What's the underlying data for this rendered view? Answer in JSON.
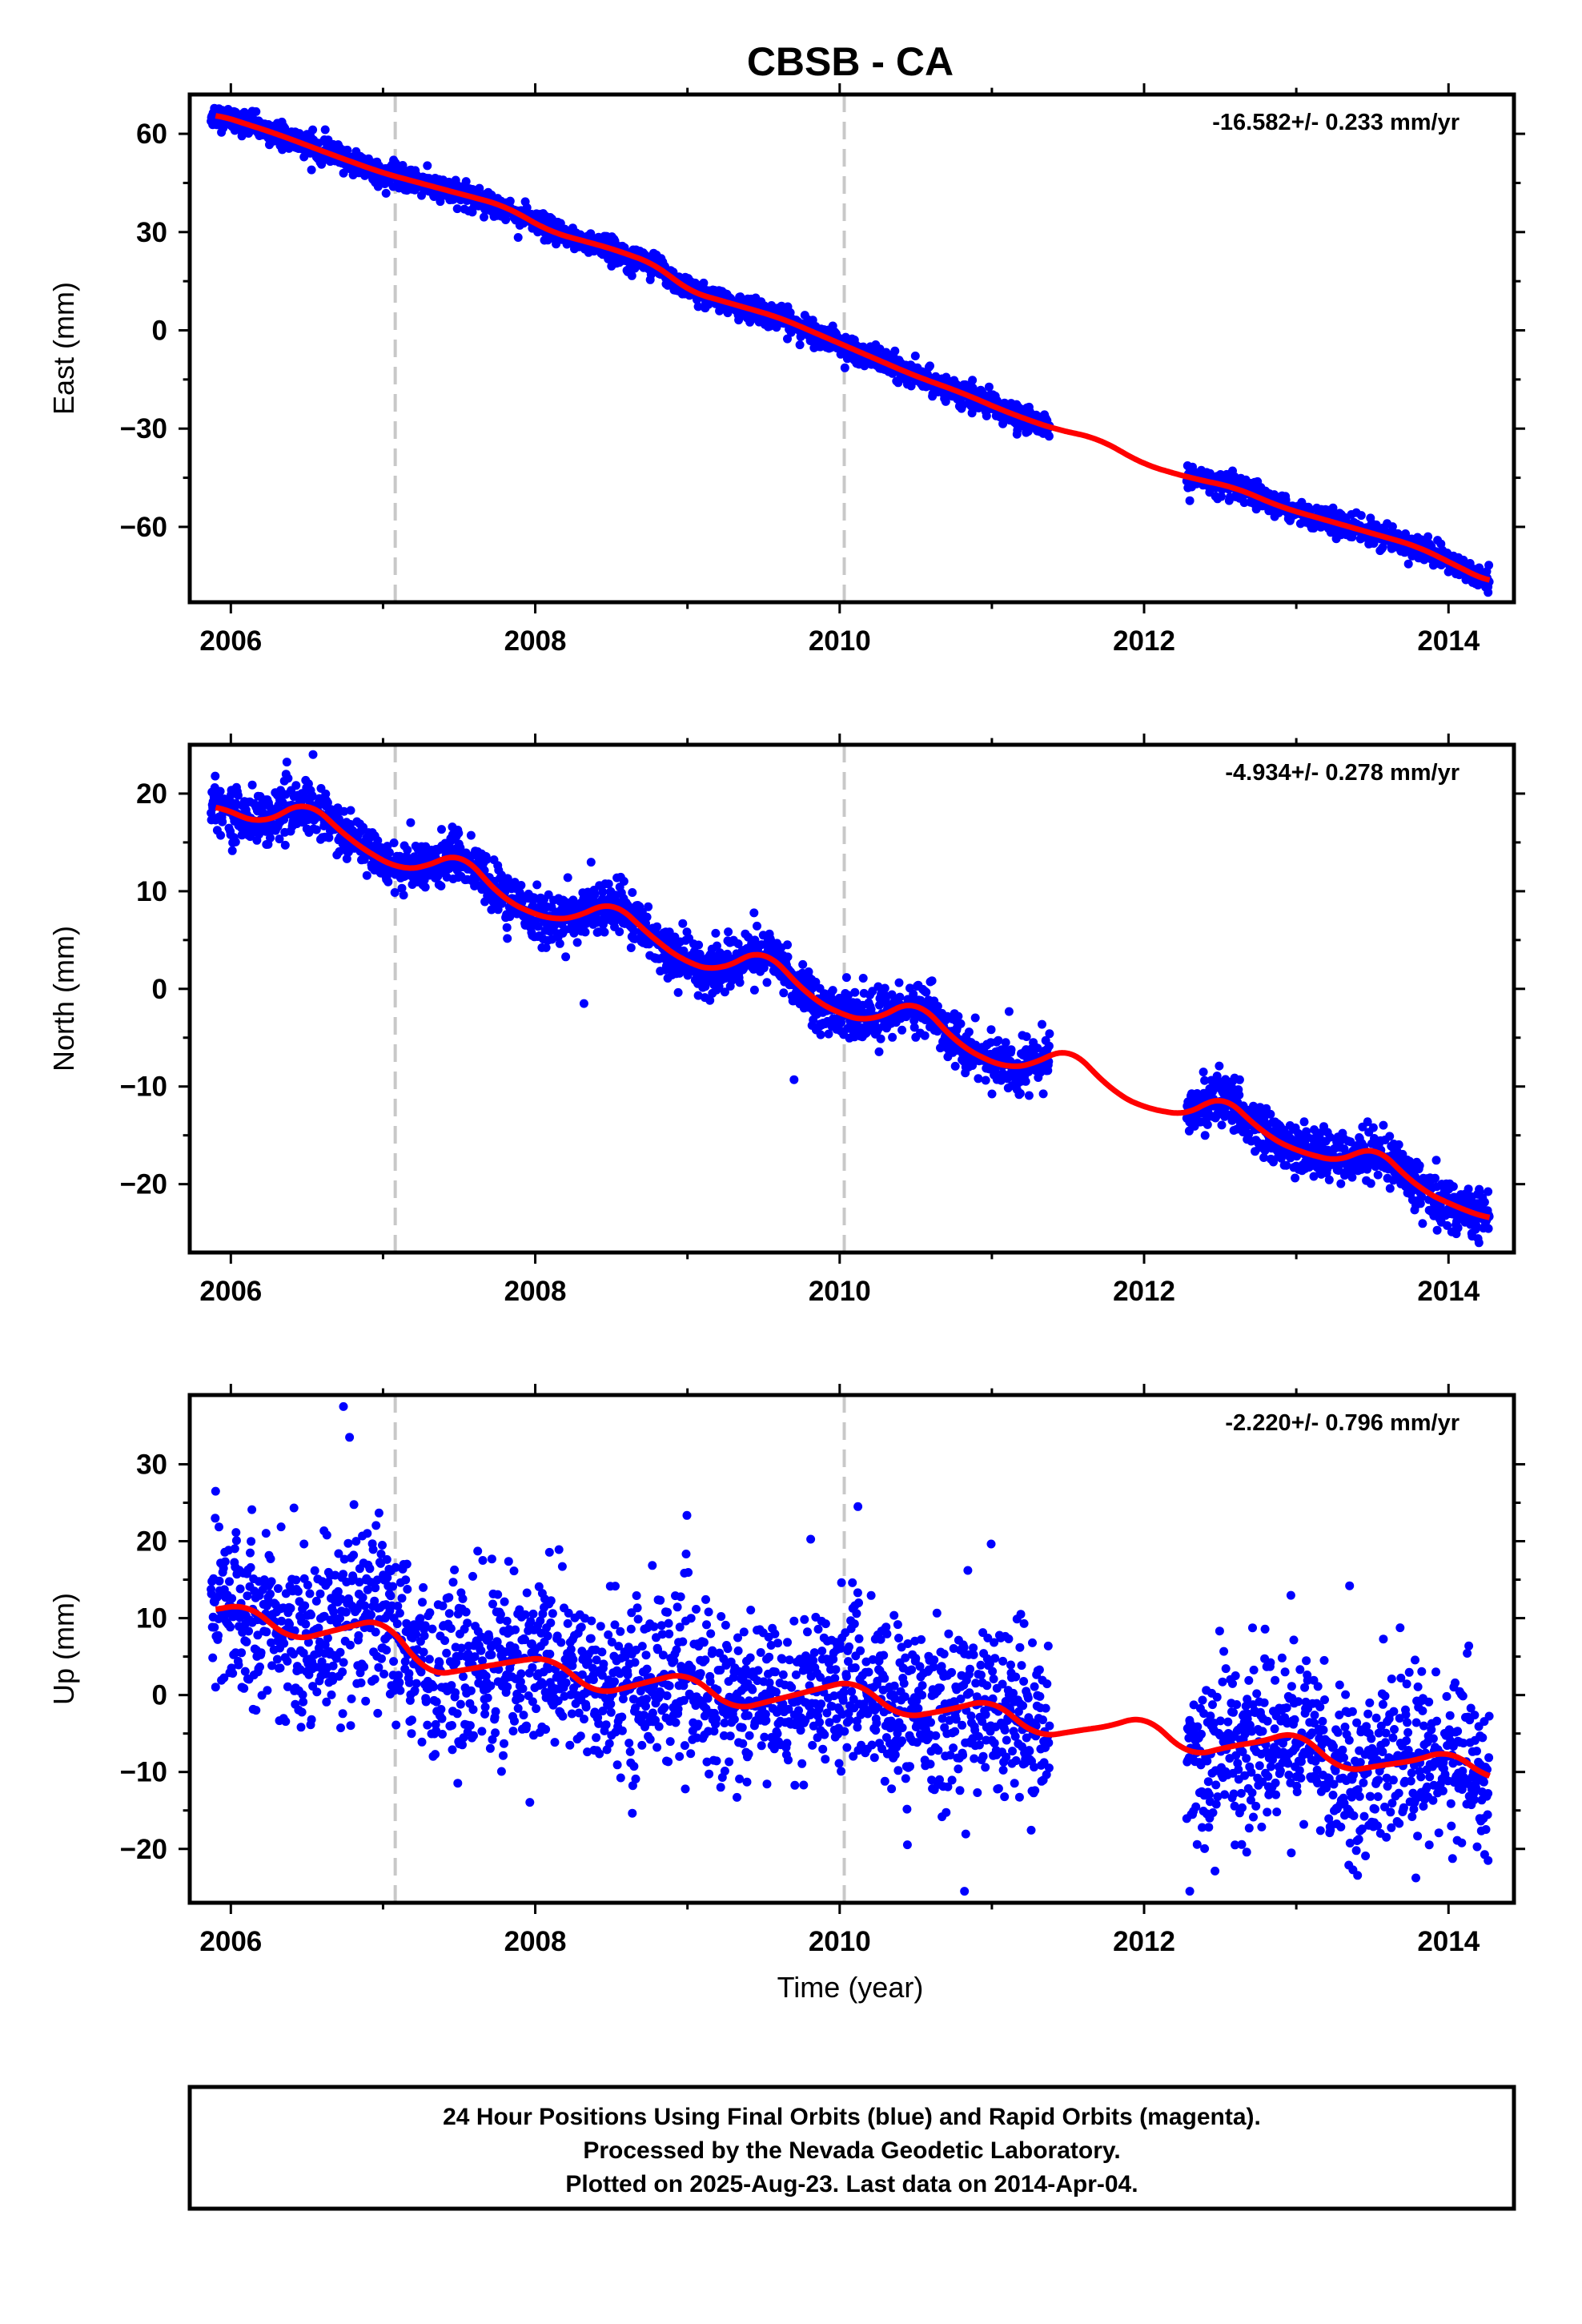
{
  "title": "CBSB - CA",
  "colors": {
    "final_orbits": "#0000ff",
    "fit_line": "#ff0000",
    "event_line": "#c8c8c8",
    "frame": "#000000"
  },
  "xlabel": "Time (year)",
  "x_ticks": [
    2006,
    2008,
    2010,
    2012,
    2014
  ],
  "xlim": [
    2005.73,
    2014.43
  ],
  "event_lines": [
    2007.08,
    2010.03
  ],
  "chart_data": [
    {
      "type": "scatter",
      "component": "East",
      "ylabel": "East (mm)",
      "rate": "-16.582+/- 0.233 mm/yr",
      "ylim": [
        -83,
        72
      ],
      "y_ticks": [
        60,
        30,
        0,
        -30,
        -60
      ],
      "y_tick_labels": [
        "60",
        "30",
        "0",
        "−30",
        "−60"
      ],
      "legend": "top-right",
      "grid": false,
      "trend": {
        "t": [
          2005.9,
          2006.3,
          2006.7,
          2007.0,
          2007.4,
          2007.8,
          2008.1,
          2008.5,
          2008.8,
          2009.0,
          2009.3,
          2009.6,
          2009.9,
          2010.2,
          2010.5,
          2010.8,
          2011.1,
          2011.4,
          2011.7,
          2012.0,
          2012.3,
          2012.6,
          2012.9,
          2013.2,
          2013.5,
          2013.8,
          2014.1,
          2014.27
        ],
        "y": [
          66,
          60,
          53,
          48,
          43,
          38,
          30,
          25,
          20,
          12,
          8,
          4,
          -2,
          -8,
          -14,
          -19,
          -25,
          -30,
          -33,
          -41,
          -45,
          -48,
          -54,
          -58,
          -62,
          -66,
          -73,
          -77
        ]
      },
      "observed_spans": [
        [
          2005.87,
          2011.38
        ],
        [
          2012.28,
          2014.27
        ]
      ],
      "scatter_sigma": 1.8,
      "outliers": [
        {
          "t": 2006.53,
          "y": 49
        },
        {
          "t": 2012.3,
          "y": -52
        },
        {
          "t": 2014.26,
          "y": -80
        }
      ],
      "series": [
        {
          "name": "Final Orbits",
          "role": "daily-positions"
        },
        {
          "name": "Fit",
          "role": "model"
        }
      ]
    },
    {
      "type": "scatter",
      "component": "North",
      "ylabel": "North (mm)",
      "rate": "-4.934+/- 0.278 mm/yr",
      "ylim": [
        -27,
        25
      ],
      "y_ticks": [
        20,
        10,
        0,
        -10,
        -20
      ],
      "y_tick_labels": [
        "20",
        "10",
        "0",
        "−10",
        "−20"
      ],
      "legend": "top-right",
      "grid": false,
      "trend": {
        "t": [
          2005.9,
          2006.2,
          2006.5,
          2006.8,
          2007.1,
          2007.3,
          2007.5,
          2007.8,
          2008.1,
          2008.3,
          2008.5,
          2008.8,
          2009.0,
          2009.2,
          2009.5,
          2009.8,
          2010.0,
          2010.2,
          2010.5,
          2010.8,
          2011.1,
          2011.3,
          2011.5,
          2011.8,
          2012.0,
          2012.3,
          2012.5,
          2012.8,
          2013.0,
          2013.3,
          2013.5,
          2013.8,
          2014.0,
          2014.27
        ],
        "y": [
          18.8,
          16.8,
          19.4,
          15.0,
          12.2,
          12.5,
          14.2,
          9.0,
          7.0,
          7.4,
          9.2,
          4.8,
          2.6,
          1.8,
          4.2,
          -0.8,
          -2.6,
          -3.4,
          -1.0,
          -6.0,
          -8.2,
          -7.6,
          -5.8,
          -10.6,
          -12.2,
          -13.0,
          -10.6,
          -15.0,
          -16.6,
          -17.8,
          -15.8,
          -20.4,
          -22.0,
          -23.6
        ]
      },
      "observed_spans": [
        [
          2005.87,
          2011.38
        ],
        [
          2012.28,
          2014.27
        ]
      ],
      "scatter_sigma": 1.3,
      "outliers": [
        {
          "t": 2006.54,
          "y": 24
        },
        {
          "t": 2008.32,
          "y": -1.5
        },
        {
          "t": 2009.7,
          "y": -9.3
        },
        {
          "t": 2014.2,
          "y": -26
        }
      ],
      "series": [
        {
          "name": "Final Orbits",
          "role": "daily-positions"
        },
        {
          "name": "Fit",
          "role": "model"
        }
      ]
    },
    {
      "type": "scatter",
      "component": "Up",
      "ylabel": "Up (mm)",
      "rate": "-2.220+/- 0.796 mm/yr",
      "ylim": [
        -27,
        39
      ],
      "y_ticks": [
        30,
        20,
        10,
        0,
        -10,
        -20
      ],
      "y_tick_labels": [
        "30",
        "20",
        "10",
        "0",
        "−10",
        "−20"
      ],
      "legend": "top-right",
      "grid": false,
      "trend": {
        "t": [
          2005.9,
          2006.1,
          2006.4,
          2006.7,
          2007.0,
          2007.3,
          2007.6,
          2007.9,
          2008.1,
          2008.4,
          2008.7,
          2009.0,
          2009.3,
          2009.6,
          2009.9,
          2010.1,
          2010.4,
          2010.7,
          2011.0,
          2011.3,
          2011.6,
          2011.8,
          2012.0,
          2012.3,
          2012.6,
          2012.8,
          2013.0,
          2013.3,
          2013.6,
          2013.8,
          2014.0,
          2014.27
        ],
        "y": [
          11.0,
          12.0,
          7.0,
          8.5,
          10.0,
          2.5,
          3.5,
          4.5,
          5.0,
          0.0,
          1.5,
          3.0,
          -2.0,
          -0.5,
          1.0,
          2.0,
          -3.0,
          -2.0,
          -0.5,
          -5.5,
          -4.5,
          -4.0,
          -2.5,
          -8.0,
          -6.5,
          -6.0,
          -4.5,
          -10.0,
          -9.0,
          -8.5,
          -7.0,
          -11.0
        ]
      },
      "observed_spans": [
        [
          2005.87,
          2011.38
        ],
        [
          2012.28,
          2014.27
        ]
      ],
      "scatter_sigma": 5.5,
      "outliers": [
        {
          "t": 2006.74,
          "y": 37.5
        },
        {
          "t": 2006.78,
          "y": 33.5
        },
        {
          "t": 2005.9,
          "y": 26.5
        },
        {
          "t": 2010.12,
          "y": 24.5
        },
        {
          "t": 2012.3,
          "y": -25.5
        },
        {
          "t": 2010.82,
          "y": -25.5
        },
        {
          "t": 2013.35,
          "y": 14.2
        },
        {
          "t": 2014.26,
          "y": -21.5
        }
      ],
      "series": [
        {
          "name": "Final Orbits",
          "role": "daily-positions"
        },
        {
          "name": "Fit",
          "role": "model"
        }
      ]
    }
  ],
  "footer": {
    "line1": "24 Hour Positions Using Final Orbits (blue) and Rapid Orbits (magenta).",
    "line2": "Processed by the Nevada Geodetic Laboratory.",
    "line3": "Plotted on 2025-Aug-23. Last data on 2014-Apr-04."
  }
}
